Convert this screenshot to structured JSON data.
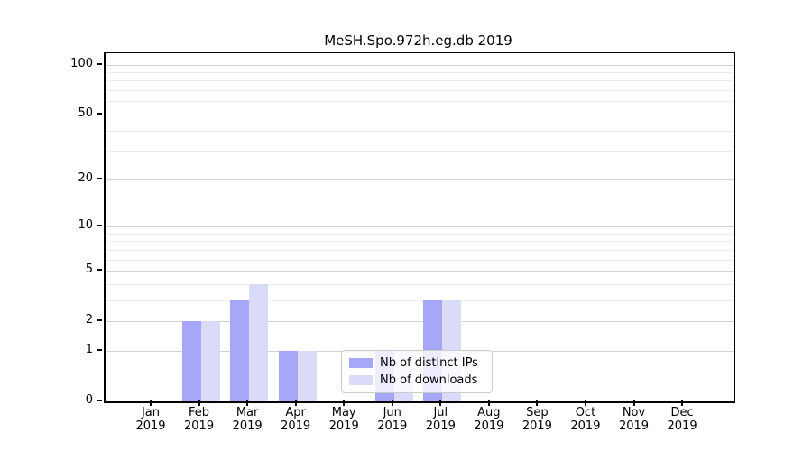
{
  "title": "MeSH.Spo.972h.eg.db 2019",
  "chart_data": {
    "type": "bar",
    "title": "MeSH.Spo.972h.eg.db 2019",
    "categories": [
      "Jan",
      "Feb",
      "Mar",
      "Apr",
      "May",
      "Jun",
      "Jul",
      "Aug",
      "Sep",
      "Oct",
      "Nov",
      "Dec"
    ],
    "year_label": "2019",
    "series": [
      {
        "name": "Nb of distinct IPs",
        "color": "#a7a7f7",
        "values": [
          0,
          2,
          3,
          1,
          0,
          1,
          3,
          0,
          0,
          0,
          0,
          0
        ]
      },
      {
        "name": "Nb of downloads",
        "color": "#dadaf9",
        "values": [
          0,
          2,
          4,
          1,
          0,
          1,
          3,
          0,
          0,
          0,
          0,
          0
        ]
      }
    ],
    "xlabel": "",
    "ylabel": "",
    "yscale": "log1p",
    "ylim": [
      0,
      117
    ],
    "yticks": [
      100,
      50,
      20,
      10,
      5,
      2,
      1,
      0
    ],
    "yticks_minor": [
      3,
      4,
      6,
      7,
      8,
      9,
      30,
      40,
      60,
      70,
      80,
      90
    ],
    "grid": "major-and-minor",
    "legend_position": "lower-center"
  },
  "colors": {
    "bar_distinct_ips": "#a7a7f7",
    "bar_downloads": "#dadaf9",
    "gridline_major": "#d2d2d2",
    "gridline_minor": "#ededed",
    "axis": "#000000",
    "legend_border": "#cccccc"
  }
}
